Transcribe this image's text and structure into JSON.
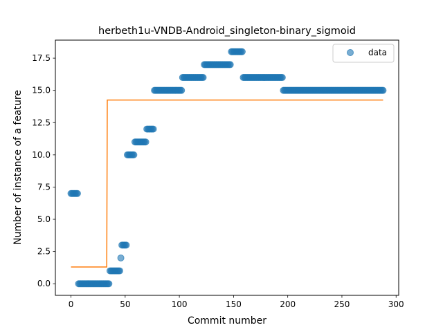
{
  "chart_data": {
    "type": "scatter",
    "title": "herbeth1u-VNDB-Android_singleton-binary_sigmoid",
    "xlabel": "Commit number",
    "ylabel": "Number of instance of a feature",
    "xlim": [
      -14.4,
      302.4
    ],
    "ylim": [
      -0.9,
      18.9
    ],
    "x_ticks": [
      0,
      50,
      100,
      150,
      200,
      250,
      300
    ],
    "x_tick_labels": [
      "0",
      "50",
      "100",
      "150",
      "200",
      "250",
      "300"
    ],
    "y_ticks": [
      0.0,
      2.5,
      5.0,
      7.5,
      10.0,
      12.5,
      15.0,
      17.5
    ],
    "y_tick_labels": [
      "0.0",
      "2.5",
      "5.0",
      "7.5",
      "10.0",
      "12.5",
      "15.0",
      "17.5"
    ],
    "grid": false,
    "legend_position": "top-right",
    "series": [
      {
        "name": "data",
        "kind": "scatter",
        "color": "#1f77b4",
        "segments": [
          {
            "x_start": 0,
            "x_end": 6,
            "y": 7
          },
          {
            "x_start": 7,
            "x_end": 35,
            "y": 0
          },
          {
            "x_start": 36,
            "x_end": 45,
            "y": 1
          },
          {
            "x_start": 46,
            "x_end": 46,
            "y": 2
          },
          {
            "x_start": 47,
            "x_end": 51,
            "y": 3
          },
          {
            "x_start": 52,
            "x_end": 58,
            "y": 10
          },
          {
            "x_start": 59,
            "x_end": 69,
            "y": 11
          },
          {
            "x_start": 70,
            "x_end": 76,
            "y": 12
          },
          {
            "x_start": 77,
            "x_end": 102,
            "y": 15
          },
          {
            "x_start": 103,
            "x_end": 122,
            "y": 16
          },
          {
            "x_start": 123,
            "x_end": 147,
            "y": 17
          },
          {
            "x_start": 148,
            "x_end": 158,
            "y": 18
          },
          {
            "x_start": 159,
            "x_end": 195,
            "y": 16
          },
          {
            "x_start": 196,
            "x_end": 288,
            "y": 15
          }
        ]
      },
      {
        "name": "",
        "kind": "line",
        "color": "#ff7f0e",
        "x": [
          0,
          33,
          33.5,
          288
        ],
        "y": [
          1.3,
          1.3,
          14.25,
          14.25
        ]
      }
    ]
  }
}
